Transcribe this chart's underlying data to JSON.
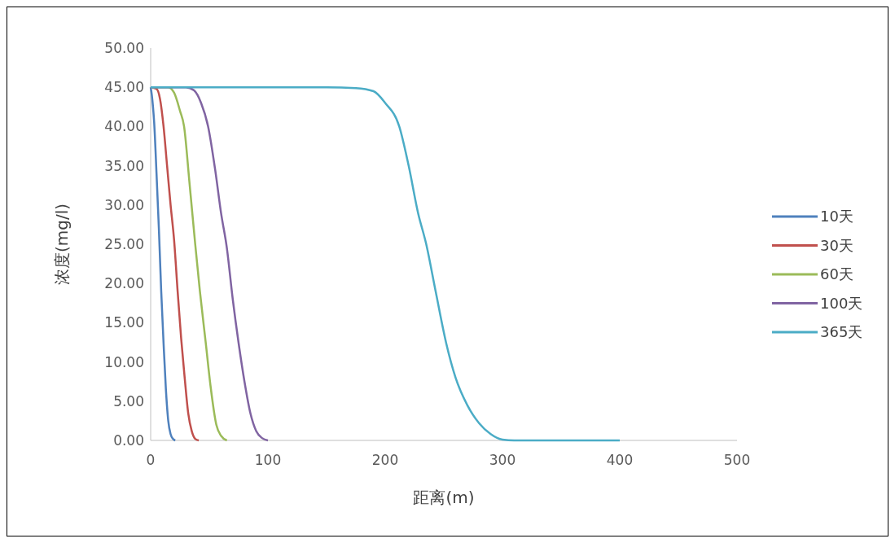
{
  "chart_data": {
    "type": "line",
    "xlabel": "距离(m)",
    "ylabel": "浓度(mg/l)",
    "xlim": [
      0,
      500
    ],
    "xticks": [
      0,
      100,
      200,
      300,
      400,
      500
    ],
    "ylim": [
      0,
      50
    ],
    "yticks": [
      {
        "value": 0,
        "label": "0.00"
      },
      {
        "value": 5,
        "label": "5.00"
      },
      {
        "value": 10,
        "label": "10.00"
      },
      {
        "value": 15,
        "label": "15.00"
      },
      {
        "value": 20,
        "label": "20.00"
      },
      {
        "value": 25,
        "label": "25.00"
      },
      {
        "value": 30,
        "label": "30.00"
      },
      {
        "value": 35,
        "label": "35.00"
      },
      {
        "value": 40,
        "label": "40.00"
      },
      {
        "value": 45,
        "label": "45.00"
      },
      {
        "value": 50,
        "label": "50.00"
      }
    ],
    "grid": false,
    "legend": "right",
    "marker": "none",
    "line_style": "solid",
    "series": [
      {
        "name": "10天",
        "color": "#4f81bd",
        "x": [
          0,
          1,
          2,
          3,
          5,
          7,
          9,
          11,
          13,
          15,
          17,
          19,
          21
        ],
        "values": [
          45,
          44,
          42.5,
          40.5,
          34,
          27,
          19,
          12.4,
          6.5,
          2.5,
          0.8,
          0.2,
          0
        ]
      },
      {
        "name": "30天",
        "color": "#c0504d",
        "x": [
          0,
          5,
          8,
          11,
          14,
          17,
          20,
          23,
          26,
          29,
          32,
          35,
          38,
          41
        ],
        "values": [
          45,
          44.8,
          43.5,
          40,
          35,
          30,
          25.5,
          19,
          13,
          8,
          3.5,
          1.2,
          0.2,
          0
        ]
      },
      {
        "name": "60天",
        "color": "#9bbb59",
        "x": [
          0,
          15,
          20,
          25,
          28.5,
          33,
          38,
          42,
          47,
          51,
          56,
          60,
          65
        ],
        "values": [
          45,
          45,
          44.3,
          42,
          40,
          33,
          25,
          19,
          12.4,
          7,
          2,
          0.6,
          0
        ]
      },
      {
        "name": "100天",
        "color": "#8064a2",
        "x": [
          0,
          30,
          37,
          43,
          49,
          55,
          60,
          65,
          70,
          75,
          80,
          85,
          90,
          95,
          100
        ],
        "values": [
          45,
          45,
          44.6,
          43,
          40,
          34.5,
          29,
          24.5,
          18,
          12.4,
          7.5,
          3.5,
          1.2,
          0.3,
          0
        ]
      },
      {
        "name": "365天",
        "color": "#4bacc6",
        "x": [
          0,
          150,
          175,
          190,
          200,
          212,
          220,
          228,
          235,
          243,
          252,
          260,
          270,
          280,
          290,
          300,
          310,
          400
        ],
        "values": [
          45,
          45,
          44.9,
          44.5,
          43,
          40,
          35,
          29,
          25,
          19,
          12.4,
          8,
          4.5,
          2.2,
          0.8,
          0.1,
          0,
          0
        ]
      }
    ]
  }
}
